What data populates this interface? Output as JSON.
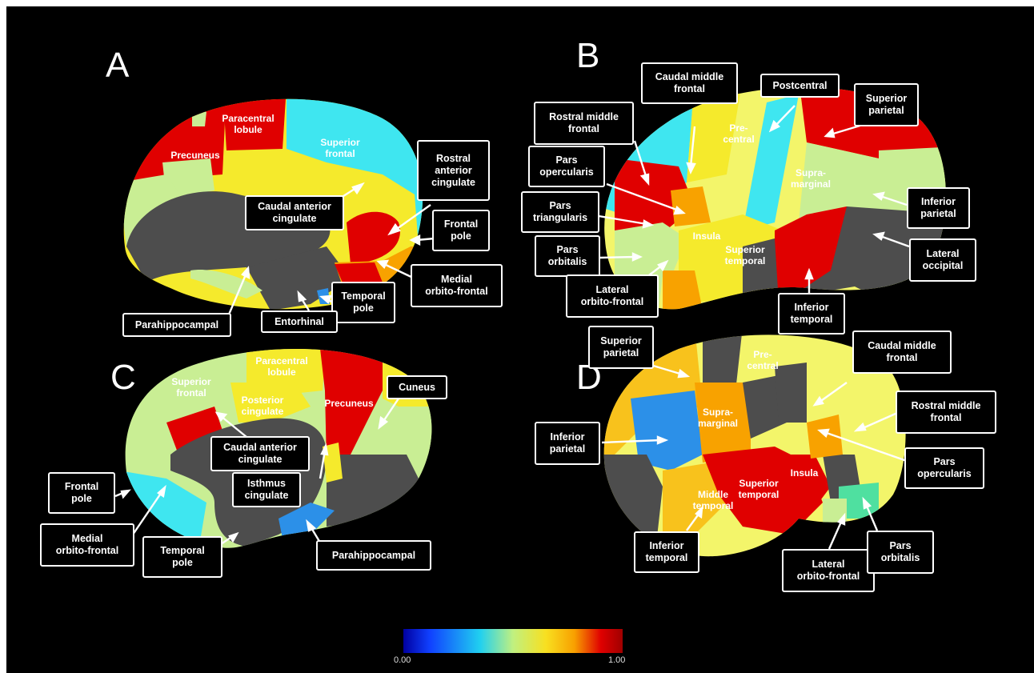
{
  "panels": [
    "A",
    "B",
    "C",
    "D"
  ],
  "colors": {
    "background": "#000000",
    "gray": "#4d4d4d",
    "red": "#e00000",
    "cyan": "#3fe6f0",
    "light_green": "#c9ee94",
    "yellow": "#f5ea2c",
    "light_yellow": "#f3f56a",
    "orange": "#f8a200",
    "amber": "#f8c21c",
    "blue": "#2c90e8"
  },
  "colorbar": {
    "min_label": "0.00",
    "max_label": "1.00",
    "stops": [
      "#0000a0",
      "#1040ff",
      "#20d0f0",
      "#c0f080",
      "#f8e020",
      "#f8a000",
      "#e00000",
      "#a00000"
    ]
  },
  "panelA": {
    "on_brain": {
      "paracentral": "Paracentral\nlobule",
      "precuneus": "Precuneus",
      "superior_frontal": "Superior\nfrontal"
    },
    "boxes": {
      "rostral_anterior_cingulate": "Rostral\nanterior\ncingulate",
      "caudal_anterior_cingulate": "Caudal anterior\ncingulate",
      "frontal_pole": "Frontal\npole",
      "medial_orbitofrontal": "Medial\norbito-frontal",
      "temporal_pole": "Temporal\npole",
      "entorhinal": "Entorhinal",
      "parahippocampal": "Parahippocampal"
    }
  },
  "panelB": {
    "on_brain": {
      "precentral": "Pre-\ncentral",
      "supramarginal": "Supra-\nmarginal",
      "insula": "Insula",
      "superior_temporal": "Superior\ntemporal"
    },
    "boxes": {
      "caudal_middle_frontal": "Caudal middle\nfrontal",
      "postcentral": "Postcentral",
      "superior_parietal": "Superior\nparietal",
      "rostral_middle_frontal": "Rostral middle\nfrontal",
      "pars_opercularis": "Pars\nopercularis",
      "pars_triangularis": "Pars\ntriangularis",
      "pars_orbitalis": "Pars\norbitalis",
      "lateral_orbitofrontal": "Lateral\norbito-frontal",
      "inferior_parietal": "Inferior\nparietal",
      "lateral_occipital": "Lateral\noccipital",
      "inferior_temporal": "Inferior\ntemporal"
    }
  },
  "panelC": {
    "on_brain": {
      "superior_frontal": "Superior\nfrontal",
      "paracentral": "Paracentral\nlobule",
      "posterior_cingulate": "Posterior\ncingulate",
      "precuneus": "Precuneus"
    },
    "boxes": {
      "cuneus": "Cuneus",
      "caudal_anterior_cingulate": "Caudal anterior\ncingulate",
      "isthmus_cingulate": "Isthmus\ncingulate",
      "frontal_pole": "Frontal\npole",
      "medial_orbitofrontal": "Medial\norbito-frontal",
      "temporal_pole": "Temporal\npole",
      "parahippocampal": "Parahippocampal"
    }
  },
  "panelD": {
    "on_brain": {
      "precentral": "Pre-\ncentral",
      "supramarginal": "Supra-\nmarginal",
      "insula": "Insula",
      "superior_temporal": "Superior\ntemporal",
      "middle_temporal": "Middle\ntemporal"
    },
    "boxes": {
      "superior_parietal": "Superior\nparietal",
      "caudal_middle_frontal": "Caudal middle\nfrontal",
      "rostral_middle_frontal": "Rostral middle\nfrontal",
      "inferior_parietal": "Inferior\nparietal",
      "pars_opercularis": "Pars\nopercularis",
      "inferior_temporal": "Inferior\ntemporal",
      "lateral_orbitofrontal": "Lateral\norbito-frontal",
      "pars_orbitalis": "Pars\norbitalis"
    }
  }
}
